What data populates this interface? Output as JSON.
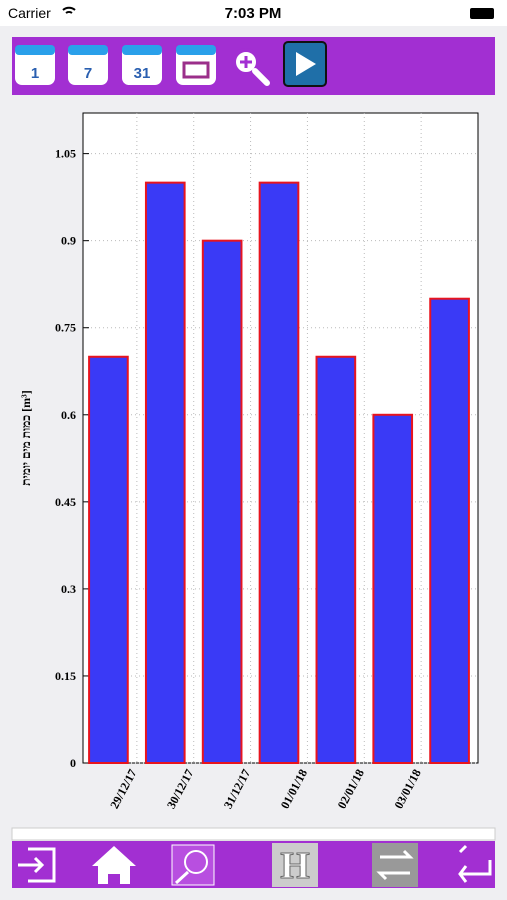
{
  "status_bar": {
    "carrier": "Carrier",
    "time": "7:03 PM"
  },
  "toolbar": {
    "buttons": [
      "1",
      "7",
      "31"
    ]
  },
  "bottom_bar": {
    "history_label": "H"
  },
  "chart_data": {
    "type": "bar",
    "y_label": "כמות מים יומית [m³]",
    "categories": [
      null,
      "29/12/17",
      "30/12/17",
      "31/12/17",
      "01/01/18",
      "02/01/18",
      "03/01/18"
    ],
    "values": [
      0.7,
      1.0,
      0.9,
      1.0,
      0.7,
      0.6,
      0.8
    ],
    "color": "#3a3af6",
    "edge_color": "#e8141e",
    "ylim": [
      0,
      1.12
    ],
    "yticks": [
      0,
      0.15,
      0.3,
      0.45,
      0.6,
      0.75,
      0.9,
      1.05
    ],
    "grid": true
  }
}
